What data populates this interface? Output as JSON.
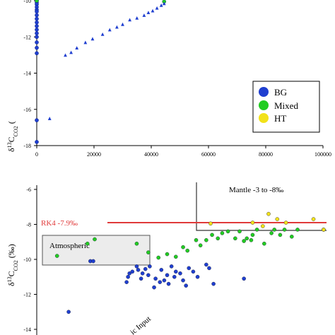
{
  "chart_data": [
    {
      "type": "scatter",
      "ylabel_main": "δ",
      "ylabel_sup": "13",
      "ylabel_rest": "C",
      "ylabel_sub": "CO2",
      "ylabel_tail": " (",
      "xlim": [
        0,
        100000
      ],
      "ylim": [
        -18,
        -10
      ],
      "x_ticks": [
        0,
        20000,
        40000,
        60000,
        80000,
        100000
      ],
      "x_tick_labels": [
        "0",
        "20000",
        "40000",
        "60000",
        "80000",
        "100000"
      ],
      "y_ticks": [
        -18,
        -16,
        -14,
        -12,
        -10
      ],
      "y_tick_labels": [
        "-18",
        "-16",
        "-14",
        "-12",
        "-10"
      ],
      "legend": {
        "placement": "bottom-right",
        "entries": [
          {
            "label": "BG",
            "color": "#1f3fd0"
          },
          {
            "label": "Mixed",
            "color": "#22cc22"
          },
          {
            "label": "HT",
            "color": "#f2e21a"
          }
        ]
      },
      "series": [
        {
          "name": "BG",
          "marker": "circle",
          "color": "#1f3fd0",
          "points": [
            [
              0,
              -9.9
            ],
            [
              0,
              -10.0
            ],
            [
              0,
              -10.1
            ],
            [
              0,
              -10.2
            ],
            [
              0,
              -10.35
            ],
            [
              0,
              -10.5
            ],
            [
              0,
              -10.6
            ],
            [
              0,
              -10.8
            ],
            [
              0,
              -11.0
            ],
            [
              0,
              -11.2
            ],
            [
              0,
              -11.4
            ],
            [
              0,
              -11.6
            ],
            [
              0,
              -11.8
            ],
            [
              0,
              -12.0
            ],
            [
              0,
              -12.3
            ],
            [
              0,
              -12.6
            ],
            [
              0,
              -12.9
            ],
            [
              0,
              -16.6
            ],
            [
              0,
              -17.8
            ]
          ]
        },
        {
          "name": "Mixed",
          "marker": "circle",
          "color": "#22cc22",
          "points": [
            [
              0,
              -9.9
            ],
            [
              0,
              -10.0
            ],
            [
              44500,
              -10.05
            ]
          ]
        },
        {
          "name": "",
          "marker": "triangle",
          "color": "#1f3fd0",
          "points": [
            [
              4500,
              -16.5
            ],
            [
              10000,
              -13.0
            ],
            [
              12000,
              -12.85
            ],
            [
              14000,
              -12.6
            ],
            [
              17000,
              -12.3
            ],
            [
              19500,
              -12.1
            ],
            [
              23000,
              -11.85
            ],
            [
              25500,
              -11.6
            ],
            [
              28000,
              -11.45
            ],
            [
              30000,
              -11.3
            ],
            [
              32500,
              -11.05
            ],
            [
              35000,
              -10.95
            ],
            [
              37500,
              -10.8
            ],
            [
              39000,
              -10.65
            ],
            [
              40500,
              -10.55
            ],
            [
              42000,
              -10.4
            ],
            [
              43500,
              -10.25
            ],
            [
              44500,
              -10.15
            ]
          ]
        }
      ]
    },
    {
      "type": "scatter",
      "ylabel_main": "δ",
      "ylabel_sup": "13",
      "ylabel_rest": "C",
      "ylabel_sub": "CO2",
      "ylabel_tail": " (‰)",
      "ylim": [
        -14,
        -6
      ],
      "y_ticks": [
        -14,
        -12,
        -10,
        -8,
        -6
      ],
      "y_tick_labels": [
        "-14",
        "-12",
        "-10",
        "-8",
        "-6"
      ],
      "xlim": [
        0,
        1
      ],
      "annotations": {
        "rk4": "RK4 -7.9‰",
        "rk4_value": -7.9,
        "mantle": "Mantle -3 to -8‰",
        "atmospheric": "Atmospheric",
        "input_fragment": "ic Input"
      },
      "series": [
        {
          "name": "BG",
          "color": "#1f3fd0",
          "points": [
            [
              0.11,
              -13.0
            ],
            [
              0.185,
              -10.1
            ],
            [
              0.195,
              -10.1
            ],
            [
              0.31,
              -11.3
            ],
            [
              0.315,
              -11.0
            ],
            [
              0.32,
              -10.8
            ],
            [
              0.33,
              -10.7
            ],
            [
              0.345,
              -10.4
            ],
            [
              0.35,
              -10.6
            ],
            [
              0.36,
              -11.1
            ],
            [
              0.365,
              -10.8
            ],
            [
              0.375,
              -10.55
            ],
            [
              0.385,
              -10.9
            ],
            [
              0.39,
              -10.4
            ],
            [
              0.405,
              -11.6
            ],
            [
              0.41,
              -11.1
            ],
            [
              0.425,
              -11.3
            ],
            [
              0.43,
              -10.6
            ],
            [
              0.44,
              -11.2
            ],
            [
              0.45,
              -10.9
            ],
            [
              0.455,
              -11.4
            ],
            [
              0.465,
              -10.4
            ],
            [
              0.475,
              -11.0
            ],
            [
              0.48,
              -10.7
            ],
            [
              0.495,
              -10.8
            ],
            [
              0.505,
              -11.2
            ],
            [
              0.515,
              -11.5
            ],
            [
              0.525,
              -10.5
            ],
            [
              0.54,
              -10.7
            ],
            [
              0.555,
              -11.0
            ],
            [
              0.585,
              -10.3
            ],
            [
              0.595,
              -10.5
            ],
            [
              0.61,
              -11.4
            ],
            [
              0.715,
              -11.1
            ]
          ]
        },
        {
          "name": "Mixed",
          "color": "#22cc22",
          "points": [
            [
              0.07,
              -9.8
            ],
            [
              0.175,
              -9.1
            ],
            [
              0.2,
              -8.85
            ],
            [
              0.345,
              -9.1
            ],
            [
              0.385,
              -9.6
            ],
            [
              0.42,
              -9.9
            ],
            [
              0.45,
              -9.7
            ],
            [
              0.48,
              -9.85
            ],
            [
              0.505,
              -9.3
            ],
            [
              0.52,
              -9.5
            ],
            [
              0.55,
              -8.9
            ],
            [
              0.565,
              -9.2
            ],
            [
              0.585,
              -8.9
            ],
            [
              0.605,
              -8.6
            ],
            [
              0.625,
              -8.8
            ],
            [
              0.64,
              -8.5
            ],
            [
              0.66,
              -8.4
            ],
            [
              0.685,
              -8.8
            ],
            [
              0.7,
              -8.4
            ],
            [
              0.715,
              -8.95
            ],
            [
              0.725,
              -8.8
            ],
            [
              0.74,
              -8.9
            ],
            [
              0.745,
              -8.6
            ],
            [
              0.76,
              -8.3
            ],
            [
              0.785,
              -9.1
            ],
            [
              0.81,
              -8.5
            ],
            [
              0.82,
              -8.3
            ],
            [
              0.84,
              -8.6
            ],
            [
              0.855,
              -8.3
            ],
            [
              0.88,
              -8.7
            ],
            [
              0.9,
              -8.3
            ],
            [
              0.99,
              -8.3
            ]
          ]
        },
        {
          "name": "HT",
          "color": "#f2e21a",
          "points": [
            [
              0.6,
              -7.95
            ],
            [
              0.745,
              -7.9
            ],
            [
              0.78,
              -8.1
            ],
            [
              0.8,
              -7.4
            ],
            [
              0.83,
              -7.7
            ],
            [
              0.86,
              -7.9
            ],
            [
              0.955,
              -7.7
            ],
            [
              0.99,
              -8.3
            ]
          ]
        }
      ]
    }
  ]
}
